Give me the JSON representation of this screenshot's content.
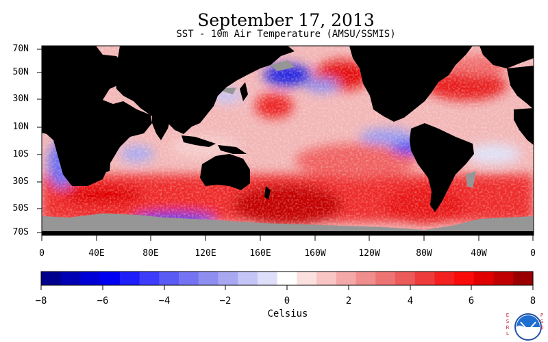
{
  "title": "September 17, 2013",
  "subtitle": "SST - 10m Air Temperature (AMSU/SSMIS)",
  "latitude_labels": [
    "70N",
    "50N",
    "30N",
    "10N",
    "10S",
    "30S",
    "50S",
    "70S"
  ],
  "longitude_labels": [
    "0",
    "40E",
    "80E",
    "120E",
    "160E",
    "160W",
    "120W",
    "80W",
    "40W",
    "0"
  ],
  "colorbar": {
    "tick_labels": [
      "−8",
      "−6",
      "−4",
      "−2",
      "0",
      "2",
      "4",
      "6",
      "8"
    ],
    "units": "Celsius",
    "range": [
      -8,
      8
    ],
    "colors": [
      "#00008c",
      "#0000b4",
      "#0000d6",
      "#0000f0",
      "#1e1efa",
      "#3c3cfa",
      "#5a5af5",
      "#7474f2",
      "#8e8ef0",
      "#a8a8f2",
      "#c4c4f7",
      "#dedefb",
      "#ffffff",
      "#fbe0e0",
      "#f8c4c4",
      "#f4a8a8",
      "#f08e8e",
      "#ee7474",
      "#ec5a5a",
      "#ee3c3c",
      "#f42020",
      "#fa0a0a",
      "#e00000",
      "#c00000",
      "#9a0000"
    ]
  },
  "map_colors": {
    "land": "#000000",
    "sea_ice_no_data": "#969696"
  },
  "logo": {
    "left_text": "ESRL",
    "right_text": "PSD",
    "emblem": "NOAA"
  }
}
